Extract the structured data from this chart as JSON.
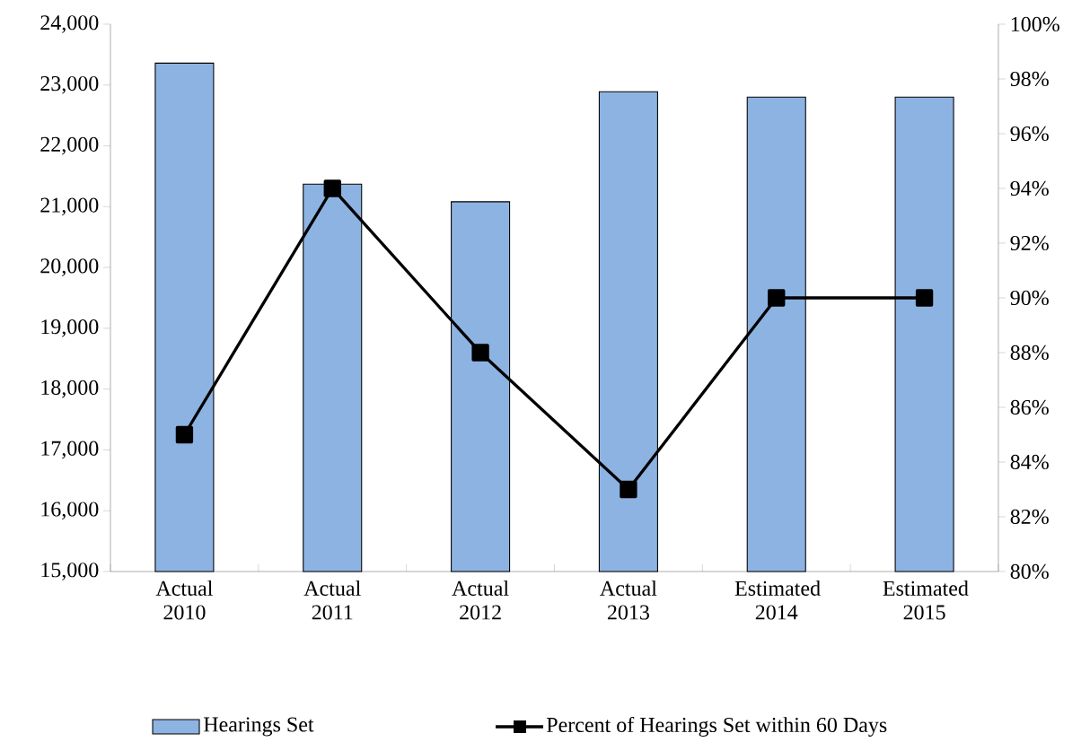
{
  "chart_data": {
    "type": "bar",
    "categories": [
      "Actual 2010",
      "Actual 2011",
      "Actual 2012",
      "Actual 2013",
      "Estimated 2014",
      "Estimated 2015"
    ],
    "series": [
      {
        "name": "Hearings Set",
        "color": "#8db3e2",
        "values": [
          23360,
          21370,
          21080,
          22890,
          22800,
          22800
        ]
      },
      {
        "name": "Percent of Hearings Set within 60 Days",
        "type": "line",
        "axis": "y2",
        "color": "#000000",
        "marker": "square",
        "values": [
          85,
          94,
          88,
          83,
          90,
          90
        ]
      }
    ],
    "ylim": [
      15000,
      24000
    ],
    "yticks": [
      {
        "value": 15000,
        "label": "15,000"
      },
      {
        "value": 16000,
        "label": "16,000"
      },
      {
        "value": 17000,
        "label": "17,000"
      },
      {
        "value": 18000,
        "label": "18,000"
      },
      {
        "value": 19000,
        "label": "19,000"
      },
      {
        "value": 20000,
        "label": "20,000"
      },
      {
        "value": 21000,
        "label": "21,000"
      },
      {
        "value": 22000,
        "label": "22,000"
      },
      {
        "value": 23000,
        "label": "23,000"
      },
      {
        "value": 24000,
        "label": "24,000"
      }
    ],
    "y2lim": [
      80,
      100
    ],
    "y2ticks": [
      {
        "value": 80,
        "label": "80%"
      },
      {
        "value": 82,
        "label": "82%"
      },
      {
        "value": 84,
        "label": "84%"
      },
      {
        "value": 86,
        "label": "86%"
      },
      {
        "value": 88,
        "label": "88%"
      },
      {
        "value": 90,
        "label": "90%"
      },
      {
        "value": 92,
        "label": "92%"
      },
      {
        "value": 94,
        "label": "94%"
      },
      {
        "value": 96,
        "label": "96%"
      },
      {
        "value": 98,
        "label": "98%"
      },
      {
        "value": 100,
        "label": "100%"
      }
    ],
    "grid": false,
    "legend": "bottom"
  }
}
